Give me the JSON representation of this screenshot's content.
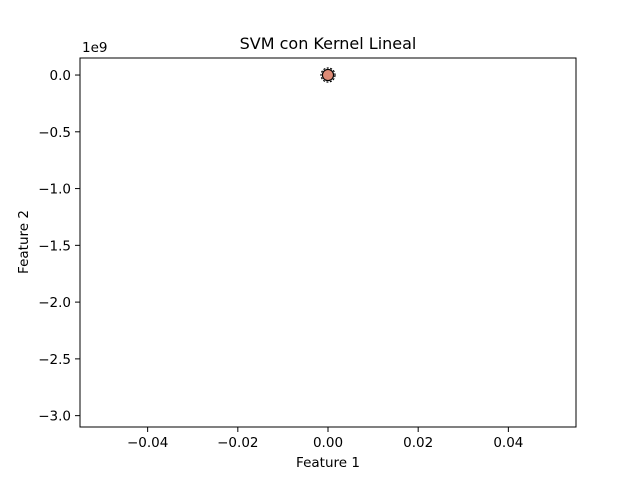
{
  "chart_data": {
    "type": "scatter",
    "title": "SVM con Kernel Lineal",
    "xlabel": "Feature 1",
    "ylabel": "Feature 2",
    "y_offset_label": "1e9",
    "xlim": [
      -0.055,
      0.055
    ],
    "ylim": [
      -3.1,
      0.15
    ],
    "x_ticks": [
      -0.04,
      -0.02,
      0.0,
      0.02,
      0.04
    ],
    "x_tick_labels": [
      "−0.04",
      "−0.02",
      "0.00",
      "0.02",
      "0.04"
    ],
    "y_ticks": [
      0.0,
      -0.5,
      -1.0,
      -1.5,
      -2.0,
      -2.5,
      -3.0
    ],
    "y_tick_labels": [
      "0.0",
      "−0.5",
      "−1.0",
      "−1.5",
      "−2.0",
      "−2.5",
      "−3.0"
    ],
    "grid": false,
    "points": [
      {
        "x": 0.0,
        "y": 0.0,
        "color": "#d9826c",
        "edge": "#000000"
      },
      {
        "x": 0.0,
        "y": 0.0,
        "color": "#c9685a",
        "edge": "#000000"
      },
      {
        "x": 0.0,
        "y": 0.0,
        "color": "#e0907a",
        "edge": "#000000"
      }
    ]
  }
}
